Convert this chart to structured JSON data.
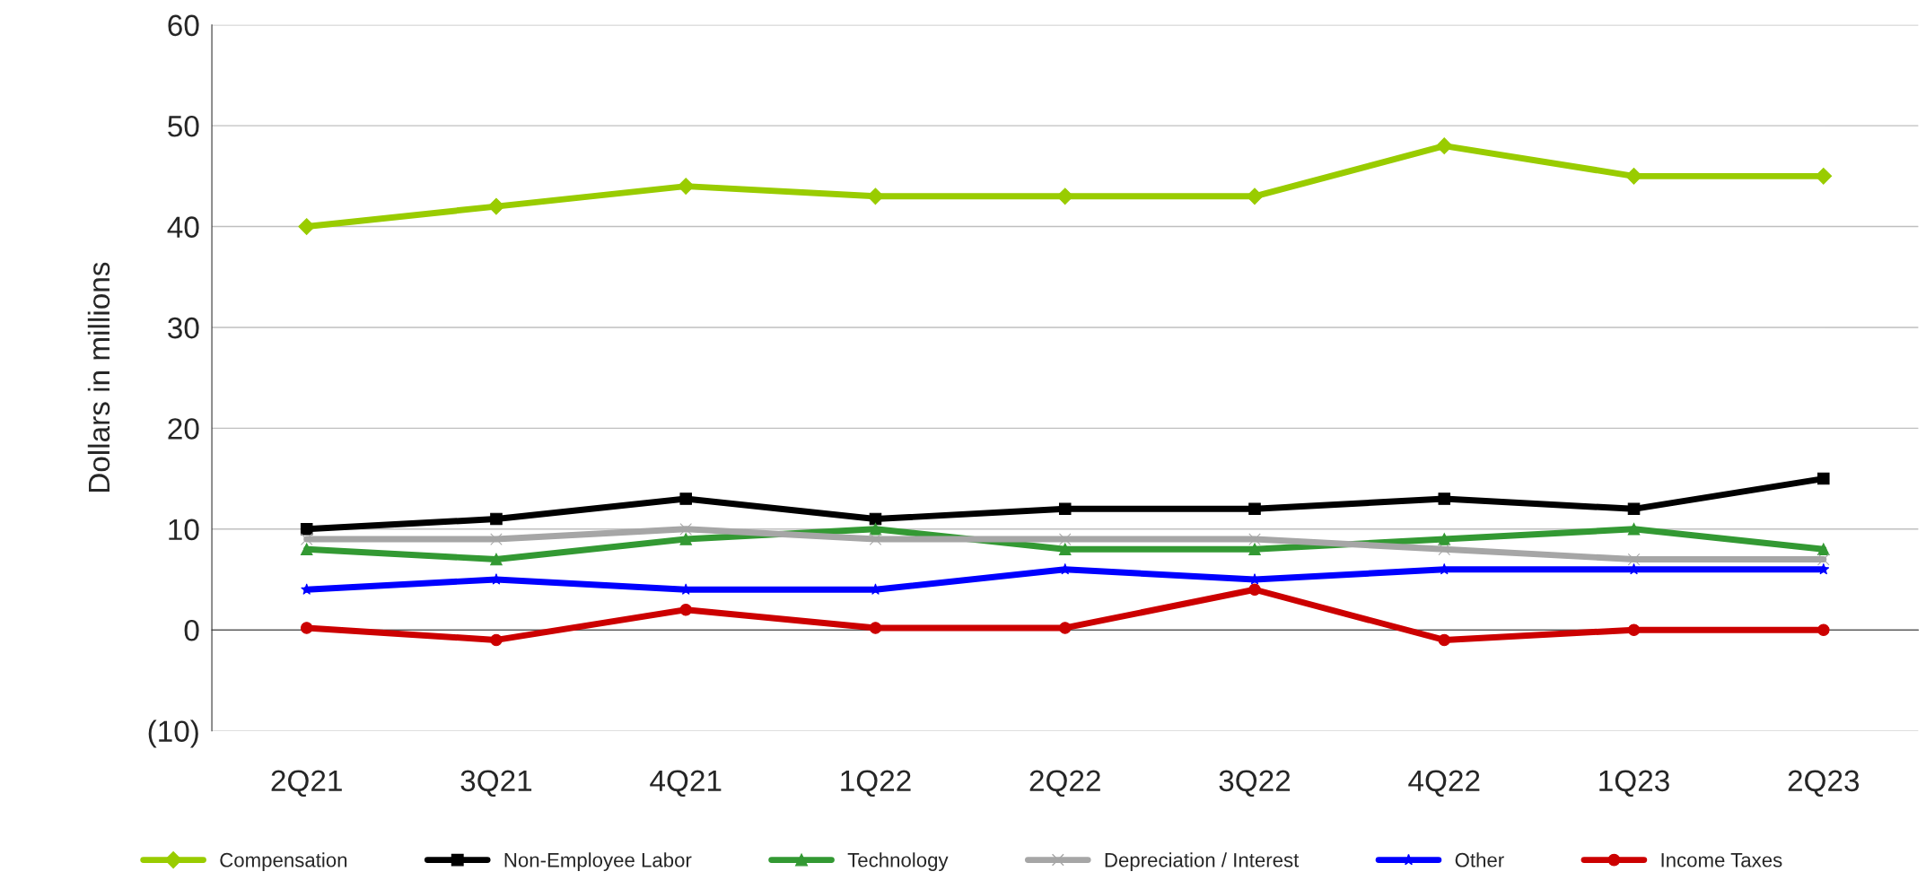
{
  "chart_data": {
    "type": "line",
    "ylabel": "Dollars in millions",
    "categories": [
      "2Q21",
      "3Q21",
      "4Q21",
      "1Q22",
      "2Q22",
      "3Q22",
      "4Q22",
      "1Q23",
      "2Q23"
    ],
    "series": [
      {
        "name": "Compensation",
        "color": "#99cc00",
        "marker": "diamond",
        "values": [
          40,
          42,
          44,
          43,
          43,
          43,
          48,
          45,
          45
        ]
      },
      {
        "name": "Non-Employee Labor",
        "color": "#000000",
        "marker": "square",
        "values": [
          10,
          11,
          13,
          11,
          12,
          12,
          13,
          12,
          15
        ]
      },
      {
        "name": "Technology",
        "color": "#339933",
        "marker": "triangle",
        "values": [
          8,
          7,
          9,
          10,
          8,
          8,
          9,
          10,
          8
        ]
      },
      {
        "name": "Depreciation / Interest",
        "color": "#a6a6a6",
        "marker": "cross",
        "values": [
          9,
          9,
          10,
          9,
          9,
          9,
          8,
          7,
          7
        ]
      },
      {
        "name": "Other",
        "color": "#0000ff",
        "marker": "star",
        "values": [
          4,
          5,
          4,
          4,
          6,
          5,
          6,
          6,
          6
        ]
      },
      {
        "name": "Income Taxes",
        "color": "#cc0000",
        "marker": "circle",
        "values": [
          0.2,
          -1,
          2,
          0.2,
          0.2,
          4,
          -1,
          0,
          0
        ]
      }
    ],
    "ylim": [
      -10,
      60
    ],
    "yticks": [
      {
        "value": -10,
        "label": "(10)"
      },
      0,
      10,
      20,
      30,
      40,
      50,
      60
    ],
    "grid": "y",
    "legend": "bottom"
  }
}
